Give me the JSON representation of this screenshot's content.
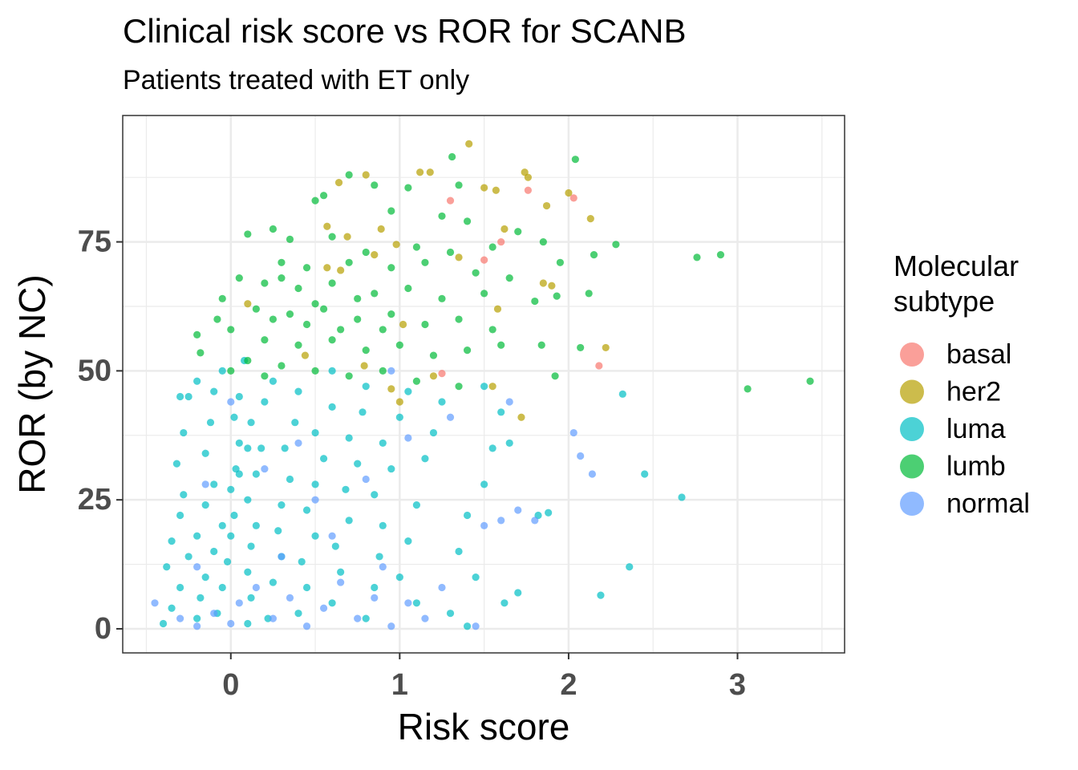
{
  "chart_data": {
    "type": "scatter",
    "title": "Clinical risk score vs ROR for SCANB",
    "subtitle": "Patients treated with ET only",
    "x_label": "Risk score",
    "y_label": "ROR (by NC)",
    "legend_title": "Molecular\nsubtype",
    "legend_position": "right",
    "grid": true,
    "xlim": [
      -0.64,
      3.634
    ],
    "ylim": [
      -4.67,
      99.5
    ],
    "xticks": [
      0,
      1,
      2,
      3
    ],
    "yticks": [
      0,
      25,
      50,
      75
    ],
    "x_minor_grid": [
      -0.5,
      0.5,
      1.5,
      2.5,
      3.5
    ],
    "y_minor_grid": [
      12.5,
      37.5,
      62.5,
      87.5
    ],
    "series": [
      {
        "name": "basal",
        "color": "#F8766D",
        "x": [
          1.3,
          1.76,
          2.03,
          1.6,
          1.5,
          2.18,
          1.25
        ],
        "y": [
          83,
          85,
          83.5,
          75,
          71.5,
          51,
          49.5
        ]
      },
      {
        "name": "her2",
        "color": "#B79F00",
        "x": [
          1.41,
          0.64,
          0.8,
          1.12,
          1.18,
          1.5,
          1.57,
          1.74,
          1.76,
          2.0,
          1.87,
          2.13,
          0.57,
          0.89,
          1.62,
          0.69,
          0.98,
          0.57,
          0.65,
          0.85,
          1.35,
          1.85,
          1.9,
          1.58,
          0.1,
          1.02,
          2.22,
          1.2,
          1.72,
          1.55,
          0.95,
          1.0,
          0.79,
          0.44
        ],
        "y": [
          94,
          86.5,
          88,
          88.5,
          88.5,
          85.5,
          85,
          88.5,
          87.5,
          84.5,
          82,
          79.5,
          78,
          77.5,
          77.5,
          76,
          74.5,
          70,
          69.5,
          72.5,
          72,
          67,
          66.5,
          62,
          63,
          59,
          54.5,
          49,
          41,
          47,
          46.5,
          44,
          51,
          53
        ]
      },
      {
        "name": "luma",
        "color": "#00BFC4",
        "x": [
          -0.4,
          -0.35,
          -0.3,
          -0.38,
          -0.35,
          -0.3,
          -0.28,
          -0.32,
          -0.28,
          -0.3,
          -0.25,
          -0.2,
          -0.25,
          -0.2,
          -0.18,
          -0.15,
          -0.2,
          -0.15,
          -0.1,
          -0.15,
          -0.12,
          -0.1,
          -0.05,
          -0.08,
          -0.05,
          -0.02,
          0.0,
          0.02,
          0.0,
          0.03,
          0.05,
          0.02,
          0.05,
          0.08,
          0.1,
          0.12,
          0.1,
          0.12,
          0.15,
          0.1,
          0.15,
          0.18,
          0.12,
          0.2,
          0.25,
          0.22,
          0.25,
          0.3,
          0.28,
          0.3,
          0.35,
          0.32,
          0.38,
          0.4,
          0.4,
          0.45,
          0.42,
          0.5,
          0.45,
          0.5,
          0.55,
          0.5,
          0.6,
          0.6,
          0.6,
          0.65,
          0.62,
          0.7,
          0.68,
          0.75,
          0.7,
          0.78,
          0.8,
          0.8,
          0.85,
          0.88,
          0.9,
          0.85,
          0.95,
          0.9,
          1.0,
          1.05,
          1.0,
          1.05,
          1.1,
          1.15,
          1.2,
          1.25,
          1.1,
          1.3,
          1.35,
          1.4,
          1.5,
          1.55,
          1.6,
          1.65,
          1.45,
          1.62,
          1.7,
          1.82,
          1.88,
          1.5,
          2.32,
          2.45,
          2.67,
          2.36,
          2.19,
          1.4,
          0.05,
          -0.05,
          0.1,
          -0.1
        ],
        "y": [
          1,
          4,
          8,
          12,
          17,
          22,
          26,
          32,
          38,
          45,
          45,
          48,
          14,
          2,
          6,
          10,
          18,
          24,
          28,
          34,
          40,
          46,
          50,
          3,
          8,
          13,
          18,
          22,
          27,
          31,
          36,
          41,
          45,
          52,
          1,
          6,
          11,
          16,
          20,
          25,
          30,
          35,
          40,
          44,
          48,
          2,
          9,
          14,
          19,
          24,
          29,
          35,
          40,
          46,
          3,
          8,
          13,
          18,
          23,
          28,
          33,
          38,
          43,
          50,
          5,
          11,
          16,
          21,
          27,
          32,
          37,
          42,
          47,
          2,
          8,
          14,
          20,
          26,
          31,
          36,
          41,
          46,
          10,
          17,
          24,
          33,
          38,
          44,
          5,
          3,
          15,
          22,
          28,
          35,
          42,
          36,
          10,
          5,
          7,
          22,
          22.5,
          47,
          45.5,
          30,
          25.5,
          12,
          6.5,
          0.5,
          30,
          20,
          35,
          15
        ]
      },
      {
        "name": "lumb",
        "color": "#00BA38",
        "x": [
          1.31,
          2.04,
          0.7,
          0.85,
          1.05,
          1.35,
          0.55,
          0.5,
          0.95,
          1.25,
          1.4,
          1.7,
          0.1,
          0.25,
          0.35,
          0.6,
          0.8,
          1.1,
          1.3,
          1.55,
          1.85,
          2.28,
          2.15,
          1.95,
          2.76,
          2.9,
          0.3,
          0.45,
          0.7,
          0.95,
          1.15,
          1.45,
          1.65,
          0.05,
          0.2,
          0.4,
          0.6,
          0.85,
          1.05,
          1.25,
          1.5,
          2.12,
          1.93,
          1.8,
          -0.05,
          0.15,
          0.35,
          0.55,
          0.75,
          0.95,
          1.15,
          1.35,
          1.55,
          -0.2,
          0.0,
          0.2,
          0.4,
          0.6,
          0.8,
          1.0,
          1.2,
          1.4,
          1.6,
          1.84,
          2.07,
          -0.18,
          0.1,
          0.3,
          0.5,
          0.7,
          0.9,
          1.1,
          1.35,
          1.92,
          3.06,
          3.43,
          0.45,
          0.65,
          0.25,
          0.5,
          0.75,
          0.3,
          0.9,
          0.2,
          0.0,
          -0.08
        ],
        "y": [
          91.5,
          91,
          88,
          86,
          85.5,
          86,
          84,
          83,
          81,
          80,
          79,
          77,
          76.5,
          77.5,
          75.5,
          76,
          73,
          74,
          73,
          74,
          75,
          74.5,
          72.5,
          71,
          72,
          72.5,
          71,
          70,
          71,
          70,
          71,
          69,
          68,
          68,
          67,
          66,
          67,
          65,
          66,
          64,
          65,
          65,
          64.5,
          63.5,
          64,
          62,
          61,
          62,
          60,
          61,
          59,
          60,
          58,
          57,
          58,
          56,
          55,
          56,
          54,
          55,
          53,
          54,
          55,
          55,
          54.5,
          53.5,
          52,
          51,
          50,
          49,
          50,
          48,
          47,
          49,
          46.5,
          48,
          59,
          58,
          60,
          63,
          64,
          68,
          58,
          49,
          50,
          60
        ]
      },
      {
        "name": "normal",
        "color": "#619CFF",
        "x": [
          -0.45,
          -0.3,
          -0.2,
          -0.1,
          0.0,
          0.05,
          0.15,
          0.25,
          0.35,
          0.45,
          0.55,
          0.65,
          0.75,
          0.85,
          0.95,
          1.05,
          1.15,
          1.25,
          -0.2,
          0.3,
          0.6,
          0.9,
          1.45,
          1.5,
          1.6,
          1.7,
          1.8,
          2.03,
          2.07,
          2.14,
          1.65,
          1.3,
          1.05,
          0.8,
          0.5,
          0.2,
          0.95,
          0.0,
          -0.15,
          0.4
        ],
        "y": [
          5,
          2,
          0.5,
          3,
          1,
          5,
          8,
          2,
          6,
          0.5,
          4,
          9,
          2,
          6,
          0.5,
          5,
          2,
          8,
          12,
          14,
          18,
          12,
          0.5,
          20,
          21,
          23,
          21,
          38,
          33.5,
          30,
          44,
          41,
          37,
          29,
          25,
          31,
          50,
          44,
          28,
          36
        ]
      }
    ]
  }
}
